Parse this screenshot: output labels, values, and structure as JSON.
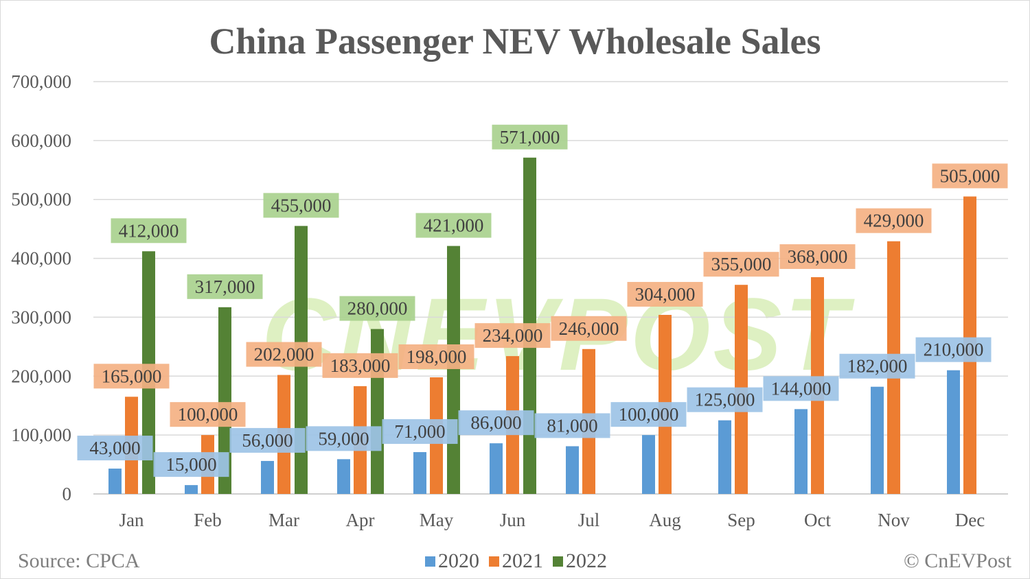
{
  "chart_data": {
    "type": "bar",
    "title": "China Passenger NEV Wholesale Sales",
    "xlabel": "",
    "ylabel": "",
    "ylim": [
      0,
      700000
    ],
    "yticks": [
      0,
      100000,
      200000,
      300000,
      400000,
      500000,
      600000,
      700000
    ],
    "ytick_labels": [
      "0",
      "100,000",
      "200,000",
      "300,000",
      "400,000",
      "500,000",
      "600,000",
      "700,000"
    ],
    "grid": true,
    "legend_placement": "bottom",
    "categories": [
      "Jan",
      "Feb",
      "Mar",
      "Apr",
      "May",
      "Jun",
      "Jul",
      "Aug",
      "Sep",
      "Oct",
      "Nov",
      "Dec"
    ],
    "series": [
      {
        "name": "2020",
        "color": "#5b9bd5",
        "label_bg": "#9dc3e6",
        "values": [
          43000,
          15000,
          56000,
          59000,
          71000,
          86000,
          81000,
          100000,
          125000,
          144000,
          182000,
          210000
        ]
      },
      {
        "name": "2021",
        "color": "#ed7d31",
        "label_bg": "#f4b183",
        "values": [
          165000,
          100000,
          202000,
          183000,
          198000,
          234000,
          246000,
          304000,
          355000,
          368000,
          429000,
          505000
        ]
      },
      {
        "name": "2022",
        "color": "#548235",
        "label_bg": "#a9d18e",
        "values": [
          412000,
          317000,
          455000,
          280000,
          421000,
          571000,
          null,
          null,
          null,
          null,
          null,
          null
        ]
      }
    ]
  },
  "footer": {
    "source": "Source: CPCA",
    "credit": "© CnEVPost"
  },
  "watermark": "CNEVPOST"
}
